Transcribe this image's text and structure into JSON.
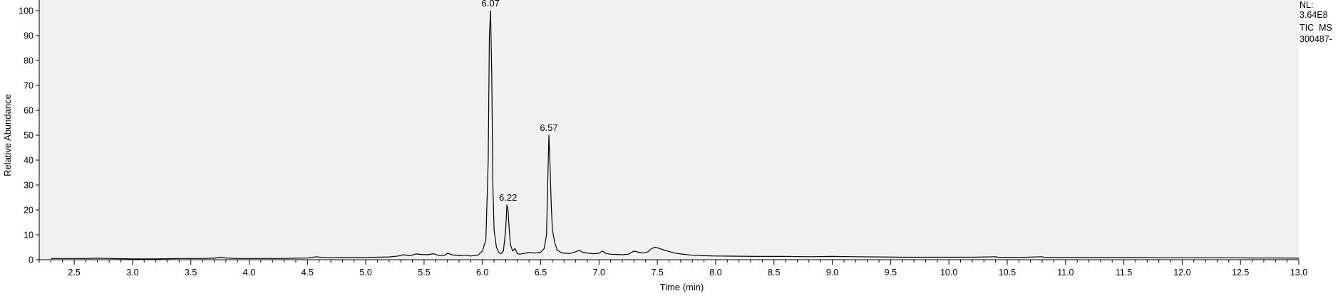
{
  "chart_data": {
    "type": "line",
    "title": "",
    "xlabel": "Time (min)",
    "ylabel": "Relative Abundance",
    "xlim": [
      2.2,
      13.0
    ],
    "ylim": [
      0,
      100
    ],
    "x_ticks": [
      "2.5",
      "3.0",
      "3.5",
      "4.0",
      "4.5",
      "5.0",
      "5.5",
      "6.0",
      "6.5",
      "7.0",
      "7.5",
      "8.0",
      "8.5",
      "9.0",
      "9.5",
      "10.0",
      "10.5",
      "11.0",
      "11.5",
      "12.0",
      "12.5",
      "13.0"
    ],
    "y_ticks": [
      "0",
      "10",
      "20",
      "30",
      "40",
      "50",
      "60",
      "70",
      "80",
      "90",
      "100"
    ],
    "grid": false,
    "background": "#f1f1f1",
    "line_color": "#000000",
    "peak_labels": [
      {
        "x": 6.07,
        "y": 100,
        "label": "6.07"
      },
      {
        "x": 6.22,
        "y": 22,
        "label": "6.22"
      },
      {
        "x": 6.57,
        "y": 50,
        "label": "6.57"
      }
    ],
    "series": [
      {
        "x": [
          2.3,
          2.4,
          2.5,
          2.6,
          2.7,
          2.8,
          2.9,
          3.0,
          3.1,
          3.2,
          3.3,
          3.4,
          3.5,
          3.6,
          3.7,
          3.76,
          3.8,
          3.9,
          4.0,
          4.1,
          4.2,
          4.3,
          4.4,
          4.5,
          4.58,
          4.62,
          4.7,
          4.8,
          4.9,
          5.0,
          5.1,
          5.2,
          5.28,
          5.32,
          5.38,
          5.43,
          5.48,
          5.53,
          5.58,
          5.63,
          5.68,
          5.7,
          5.74,
          5.8,
          5.86,
          5.9,
          5.96,
          6.0,
          6.03,
          6.05,
          6.06,
          6.07,
          6.08,
          6.09,
          6.1,
          6.12,
          6.14,
          6.16,
          6.18,
          6.2,
          6.21,
          6.22,
          6.23,
          6.24,
          6.26,
          6.28,
          6.3,
          6.32,
          6.35,
          6.4,
          6.45,
          6.5,
          6.53,
          6.55,
          6.56,
          6.57,
          6.58,
          6.59,
          6.6,
          6.62,
          6.64,
          6.67,
          6.7,
          6.75,
          6.8,
          6.83,
          6.86,
          6.9,
          6.95,
          7.0,
          7.03,
          7.06,
          7.1,
          7.15,
          7.2,
          7.25,
          7.3,
          7.34,
          7.38,
          7.42,
          7.45,
          7.48,
          7.5,
          7.55,
          7.6,
          7.65,
          7.7,
          7.8,
          7.9,
          8.0,
          8.2,
          8.4,
          8.6,
          8.8,
          9.0,
          9.2,
          9.4,
          9.6,
          9.8,
          10.0,
          10.2,
          10.4,
          10.42,
          10.6,
          10.8,
          10.82,
          11.0,
          11.2,
          11.4,
          11.6,
          11.8,
          12.0,
          12.2,
          12.4,
          12.6,
          12.8,
          13.0
        ],
        "y": [
          0.5,
          0.5,
          0.5,
          0.5,
          0.6,
          0.5,
          0.4,
          0.3,
          0.3,
          0.3,
          0.4,
          0.5,
          0.5,
          0.5,
          0.6,
          1.0,
          0.7,
          0.5,
          0.5,
          0.5,
          0.5,
          0.5,
          0.6,
          0.7,
          1.2,
          0.9,
          0.8,
          0.9,
          0.9,
          0.9,
          1.0,
          1.1,
          1.5,
          2.0,
          1.6,
          2.3,
          2.1,
          2.0,
          2.4,
          1.7,
          1.8,
          2.6,
          2.0,
          1.6,
          1.8,
          1.5,
          1.8,
          3.5,
          8.0,
          40.0,
          90.0,
          100.0,
          75.0,
          30.0,
          12.0,
          5.0,
          3.0,
          2.4,
          3.5,
          12.0,
          22.0,
          20.0,
          12.0,
          6.0,
          3.5,
          4.5,
          2.5,
          2.2,
          2.5,
          2.9,
          2.7,
          3.0,
          4.5,
          10.0,
          30.0,
          50.0,
          38.0,
          22.0,
          12.0,
          7.0,
          4.0,
          3.0,
          2.6,
          2.5,
          3.2,
          3.8,
          3.0,
          2.7,
          2.4,
          2.6,
          3.5,
          2.5,
          2.2,
          2.1,
          2.0,
          2.2,
          3.5,
          3.0,
          2.7,
          3.2,
          4.5,
          5.0,
          4.8,
          4.0,
          3.3,
          2.7,
          2.3,
          1.8,
          1.6,
          1.5,
          1.4,
          1.3,
          1.3,
          1.2,
          1.3,
          1.2,
          1.1,
          1.0,
          1.0,
          1.0,
          1.0,
          1.2,
          1.0,
          0.9,
          1.2,
          0.9,
          0.9,
          0.9,
          0.9,
          0.9,
          0.8,
          0.8,
          0.8,
          0.8,
          0.7,
          0.7,
          0.6
        ]
      }
    ]
  },
  "info": {
    "nl_label": "NL:",
    "nl_value": "3.64E8",
    "trace": "TIC  MS",
    "file": "300487-"
  }
}
